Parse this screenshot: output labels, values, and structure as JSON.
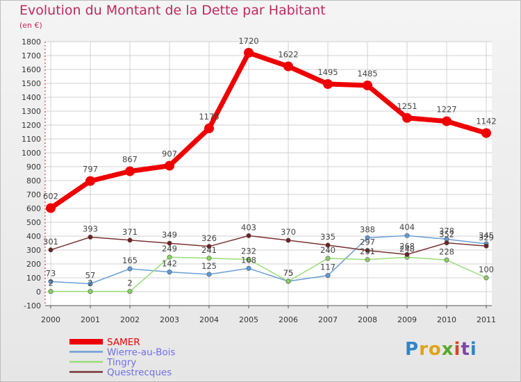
{
  "chart_data": {
    "type": "line",
    "title": "Evolution du Montant de la Dette par Habitant",
    "subtitle": "(en €)",
    "x": [
      "2000",
      "2001",
      "2002",
      "2003",
      "2004",
      "2005",
      "2006",
      "2007",
      "2008",
      "2009",
      "2010",
      "2011"
    ],
    "yticks": [
      -100,
      0,
      100,
      200,
      300,
      400,
      500,
      600,
      700,
      800,
      900,
      1000,
      1100,
      1200,
      1300,
      1400,
      1500,
      1600,
      1700,
      1800
    ],
    "ylim": [
      -100,
      1800
    ],
    "grid": true,
    "legend_position": "bottom-left",
    "series": [
      {
        "name": "SAMER",
        "color": "#ee0000",
        "marker_color": "#ee0000",
        "legend_color": "#ee0000",
        "width": 7,
        "values": [
          602,
          797,
          867,
          907,
          1176,
          1720,
          1622,
          1495,
          1485,
          1251,
          1227,
          1142
        ],
        "labels": [
          "602",
          "797",
          "867",
          "907",
          "1176",
          "1720",
          "1622",
          "1495",
          "1485",
          "1251",
          "1227",
          "1142"
        ]
      },
      {
        "name": "Wierre-au-Bois",
        "color": "#6b9ed8",
        "marker_color": "#5b9ad9",
        "legend_color": "#6e6ee6",
        "width": 1.5,
        "values": [
          73,
          57,
          165,
          142,
          125,
          168,
          75,
          117,
          388,
          404,
          378,
          345
        ],
        "labels": [
          "73",
          "57",
          "165",
          "142",
          "125",
          "168",
          "75",
          "117",
          "388",
          "404",
          "378",
          "345"
        ]
      },
      {
        "name": "Tingry",
        "color": "#99dd77",
        "marker_color": "#88d060",
        "legend_color": "#6e6ee6",
        "width": 1.5,
        "values": [
          2,
          2,
          2,
          249,
          241,
          232,
          75,
          240,
          231,
          248,
          228,
          100
        ],
        "labels": [
          "2",
          "2",
          "2",
          "249",
          "241",
          "232",
          "75",
          "240",
          "231",
          "248",
          "228",
          "100"
        ]
      },
      {
        "name": "Questrecques",
        "color": "#7a3333",
        "marker_color": "#6d2222",
        "legend_color": "#6e6ee6",
        "width": 1.5,
        "values": [
          301,
          393,
          371,
          349,
          326,
          403,
          370,
          335,
          297,
          268,
          352,
          329
        ],
        "labels": [
          "301",
          "393",
          "371",
          "349",
          "326",
          "403",
          "370",
          "335",
          "297",
          "268",
          "352",
          "329"
        ]
      }
    ]
  },
  "logo": {
    "text": "Proxiti",
    "letters": [
      "P",
      "r",
      "o",
      "x",
      "i",
      "t",
      "i"
    ]
  }
}
